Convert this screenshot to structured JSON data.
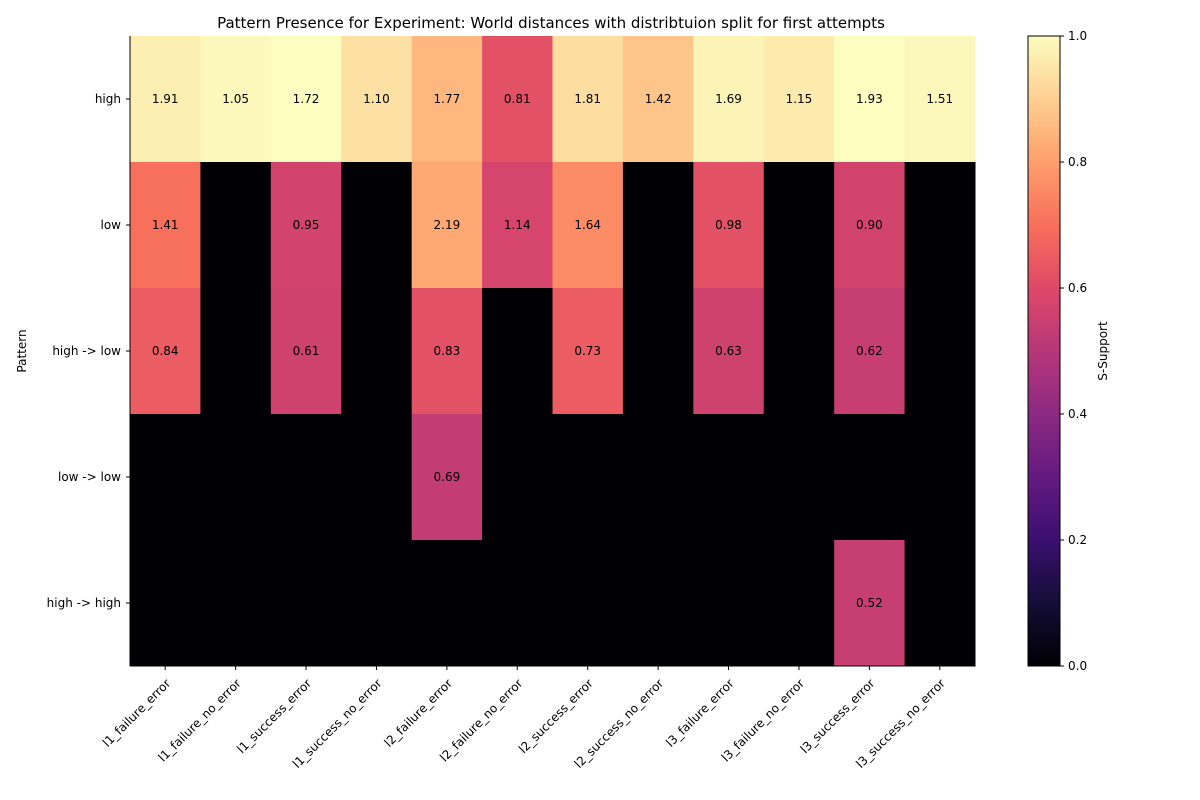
{
  "chart_data": {
    "type": "heatmap",
    "title": "Pattern Presence for Experiment: World distances with distribtuion split for first attempts",
    "xlabel": "",
    "ylabel": "Pattern",
    "colorbar_label": "S-Support",
    "colormap": "magma",
    "colorbar_range": [
      0,
      1
    ],
    "colorbar_ticks": [
      "0.0",
      "0.2",
      "0.4",
      "0.6",
      "0.8",
      "1.0"
    ],
    "columns": [
      "l1_failure_error",
      "l1_failure_no_error",
      "l1_success_error",
      "l1_success_no_error",
      "l2_failure_error",
      "l2_failure_no_error",
      "l2_success_error",
      "l2_success_no_error",
      "l3_failure_error",
      "l3_failure_no_error",
      "l3_success_error",
      "l3_success_no_error"
    ],
    "rows": [
      "high",
      "low",
      "high -> low",
      "low -> low",
      "high -> high"
    ],
    "support": [
      [
        0.97,
        0.99,
        1.0,
        0.94,
        0.85,
        0.62,
        0.93,
        0.88,
        0.98,
        0.96,
        1.0,
        0.99
      ],
      [
        0.7,
        0.0,
        0.57,
        0.0,
        0.82,
        0.58,
        0.76,
        0.0,
        0.62,
        0.0,
        0.57,
        0.0
      ],
      [
        0.65,
        0.0,
        0.56,
        0.0,
        0.62,
        0.0,
        0.65,
        0.0,
        0.56,
        0.0,
        0.54,
        0.0
      ],
      [
        0.0,
        0.0,
        0.0,
        0.0,
        0.53,
        0.0,
        0.0,
        0.0,
        0.0,
        0.0,
        0.0,
        0.0
      ],
      [
        0.0,
        0.0,
        0.0,
        0.0,
        0.0,
        0.0,
        0.0,
        0.0,
        0.0,
        0.0,
        0.54,
        0.0
      ]
    ],
    "annotations": [
      [
        "1.91",
        "1.05",
        "1.72",
        "1.10",
        "1.77",
        "0.81",
        "1.81",
        "1.42",
        "1.69",
        "1.15",
        "1.93",
        "1.51"
      ],
      [
        "1.41",
        "",
        "0.95",
        "",
        "2.19",
        "1.14",
        "1.64",
        "",
        "0.98",
        "",
        "0.90",
        ""
      ],
      [
        "0.84",
        "",
        "0.61",
        "",
        "0.83",
        "",
        "0.73",
        "",
        "0.63",
        "",
        "0.62",
        ""
      ],
      [
        "",
        "",
        "",
        "",
        "0.69",
        "",
        "",
        "",
        "",
        "",
        "",
        ""
      ],
      [
        "",
        "",
        "",
        "",
        "",
        "",
        "",
        "",
        "",
        "",
        "0.52",
        ""
      ]
    ]
  }
}
